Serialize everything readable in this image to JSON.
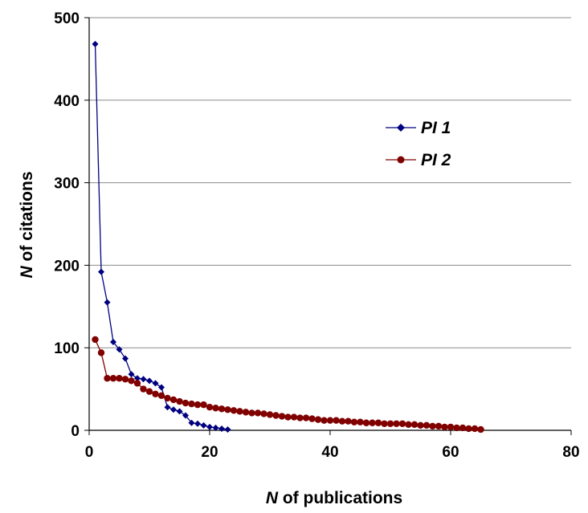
{
  "chart_data": {
    "type": "line",
    "xlabel": {
      "italic": "N",
      "rest": " of publications"
    },
    "ylabel": {
      "italic": "N",
      "rest": " of citations"
    },
    "xlim": [
      0,
      80
    ],
    "ylim": [
      0,
      500
    ],
    "xticks": [
      "0",
      "20",
      "40",
      "60",
      "80"
    ],
    "yticks": [
      "0",
      "100",
      "200",
      "300",
      "400",
      "500"
    ],
    "grid": "horizontal",
    "legend_position": "upper-right",
    "series": [
      {
        "name": "PI 1",
        "color": "#000080",
        "marker": "diamond",
        "x": [
          1,
          2,
          3,
          4,
          5,
          6,
          7,
          8,
          9,
          10,
          11,
          12,
          13,
          14,
          15,
          16,
          17,
          18,
          19,
          20,
          21,
          22,
          23
        ],
        "y": [
          468,
          192,
          155,
          107,
          98,
          87,
          68,
          63,
          62,
          60,
          57,
          52,
          28,
          25,
          23,
          18,
          9,
          8,
          6,
          4,
          3,
          2,
          1
        ]
      },
      {
        "name": "PI 2",
        "color": "#800000",
        "marker": "circle",
        "x": [
          1,
          2,
          3,
          4,
          5,
          6,
          7,
          8,
          9,
          10,
          11,
          12,
          13,
          14,
          15,
          16,
          17,
          18,
          19,
          20,
          21,
          22,
          23,
          24,
          25,
          26,
          27,
          28,
          29,
          30,
          31,
          32,
          33,
          34,
          35,
          36,
          37,
          38,
          39,
          40,
          41,
          42,
          43,
          44,
          45,
          46,
          47,
          48,
          49,
          50,
          51,
          52,
          53,
          54,
          55,
          56,
          57,
          58,
          59,
          60,
          61,
          62,
          63,
          64,
          65
        ],
        "y": [
          110,
          94,
          63,
          63,
          63,
          62,
          60,
          57,
          50,
          47,
          44,
          42,
          39,
          37,
          35,
          33,
          32,
          31,
          31,
          28,
          27,
          26,
          25,
          24,
          23,
          22,
          21,
          21,
          20,
          19,
          18,
          17,
          16,
          16,
          15,
          15,
          14,
          13,
          12,
          12,
          12,
          11,
          11,
          10,
          10,
          9,
          9,
          9,
          8,
          8,
          8,
          8,
          7,
          7,
          6,
          6,
          5,
          5,
          4,
          4,
          3,
          3,
          2,
          2,
          1
        ]
      }
    ]
  }
}
